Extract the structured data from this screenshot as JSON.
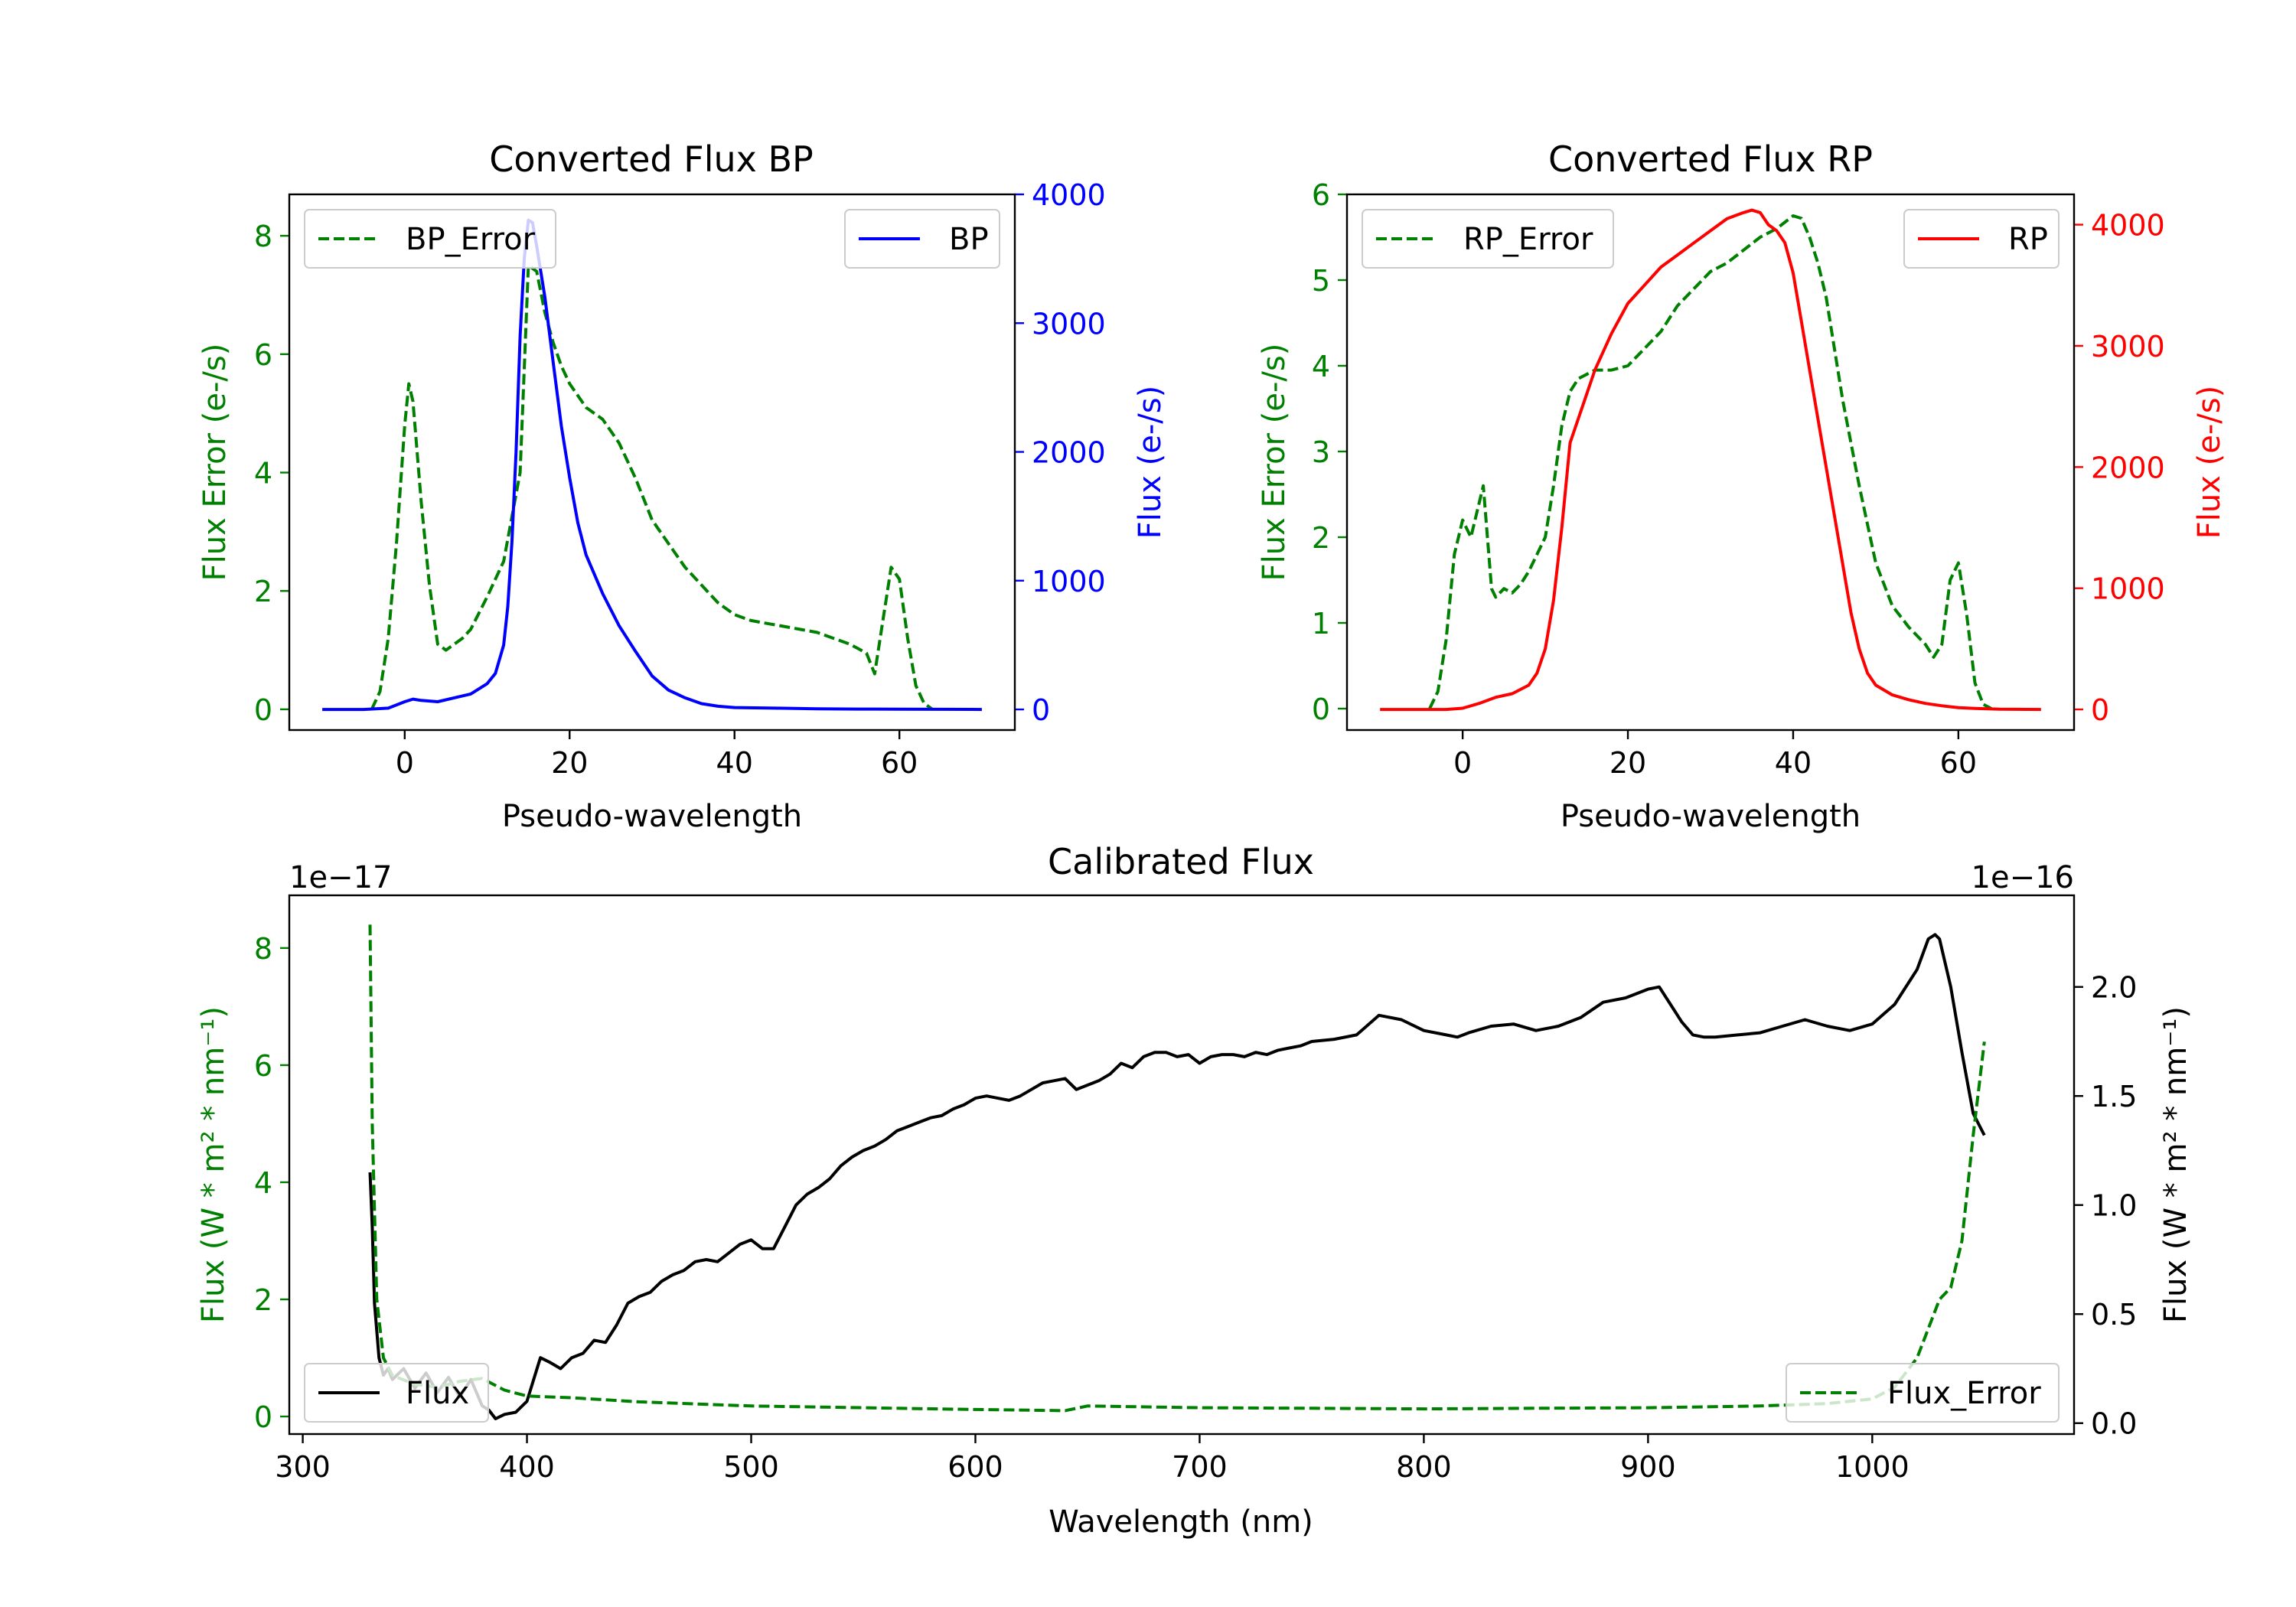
{
  "colors": {
    "bp": "#0000ff",
    "rp": "#ff0000",
    "error": "#008000",
    "flux": "#000000",
    "axis": "#000000"
  },
  "chart_data": [
    {
      "id": "bp",
      "type": "line",
      "title": "Converted Flux BP",
      "xlabel": "Pseudo-wavelength",
      "ylabel_left": "Flux Error (e-/s)",
      "ylabel_right": "Flux (e-/s)",
      "xlim": [
        -14.0,
        74.0
      ],
      "ylim_left": [
        -0.35,
        8.7
      ],
      "ylim_right": [
        -160,
        4000
      ],
      "xticks": [
        0,
        20,
        40,
        60
      ],
      "xtick_labels": [
        "0",
        "20",
        "40",
        "60"
      ],
      "yticks_left": [
        0,
        2,
        4,
        6,
        8
      ],
      "ytick_labels_left": [
        "0",
        "2",
        "4",
        "6",
        "8"
      ],
      "yticks_right": [
        0,
        1000,
        2000,
        3000,
        4000
      ],
      "ytick_labels_right": [
        "0",
        "1000",
        "2000",
        "3000",
        "4000"
      ],
      "legend_left": {
        "label": "BP_Error",
        "placement": "upper left"
      },
      "legend_right": {
        "label": "BP",
        "placement": "upper right"
      },
      "series": [
        {
          "name": "BP_Error",
          "axis": "left",
          "style": "dashed",
          "color_key": "error",
          "x": [
            -4,
            -3,
            -2,
            -1,
            0,
            0.5,
            1,
            2,
            3,
            4,
            5,
            6,
            7,
            8,
            10,
            12,
            14,
            15,
            16,
            17,
            18,
            19,
            20,
            22,
            24,
            26,
            28,
            30,
            32,
            34,
            36,
            38,
            40,
            42,
            44,
            46,
            48,
            50,
            52,
            54,
            56,
            57,
            58,
            59,
            60,
            61,
            62,
            63,
            64
          ],
          "y": [
            0,
            0.3,
            1.2,
            2.8,
            4.8,
            5.5,
            5.2,
            3.5,
            2.1,
            1.1,
            1.0,
            1.1,
            1.2,
            1.35,
            1.9,
            2.5,
            4.0,
            7.5,
            7.4,
            6.7,
            6.2,
            5.8,
            5.5,
            5.1,
            4.9,
            4.5,
            3.9,
            3.2,
            2.8,
            2.4,
            2.1,
            1.8,
            1.6,
            1.5,
            1.45,
            1.4,
            1.35,
            1.3,
            1.2,
            1.1,
            0.95,
            0.6,
            1.5,
            2.4,
            2.2,
            1.2,
            0.4,
            0.1,
            0
          ]
        },
        {
          "name": "BP",
          "axis": "right",
          "style": "solid",
          "color_key": "bp",
          "x": [
            -10,
            -5,
            -2,
            0,
            1,
            2,
            4,
            6,
            8,
            10,
            11,
            12,
            12.5,
            13,
            13.5,
            14,
            14.5,
            15,
            15.5,
            16,
            17,
            18,
            19,
            20,
            21,
            22,
            24,
            26,
            28,
            30,
            32,
            34,
            36,
            38,
            40,
            45,
            50,
            55,
            60,
            65,
            70
          ],
          "y": [
            0,
            0,
            10,
            60,
            80,
            70,
            60,
            90,
            120,
            200,
            280,
            500,
            800,
            1300,
            2000,
            2900,
            3500,
            3800,
            3780,
            3600,
            3200,
            2700,
            2200,
            1800,
            1450,
            1200,
            900,
            650,
            450,
            260,
            150,
            90,
            45,
            25,
            15,
            10,
            5,
            3,
            2,
            1,
            0
          ]
        }
      ]
    },
    {
      "id": "rp",
      "type": "line",
      "title": "Converted Flux RP",
      "xlabel": "Pseudo-wavelength",
      "ylabel_left": "Flux Error (e-/s)",
      "ylabel_right": "Flux (e-/s)",
      "xlim": [
        -14.0,
        74.0
      ],
      "ylim_left": [
        -0.25,
        6.0
      ],
      "ylim_right": [
        -170,
        4250
      ],
      "xticks": [
        0,
        20,
        40,
        60
      ],
      "xtick_labels": [
        "0",
        "20",
        "40",
        "60"
      ],
      "yticks_left": [
        0,
        1,
        2,
        3,
        4,
        5,
        6
      ],
      "ytick_labels_left": [
        "0",
        "1",
        "2",
        "3",
        "4",
        "5",
        "6"
      ],
      "yticks_right": [
        0,
        1000,
        2000,
        3000,
        4000
      ],
      "ytick_labels_right": [
        "0",
        "1000",
        "2000",
        "3000",
        "4000"
      ],
      "legend_left": {
        "label": "RP_Error",
        "placement": "upper left"
      },
      "legend_right": {
        "label": "RP",
        "placement": "upper right"
      },
      "series": [
        {
          "name": "RP_Error",
          "axis": "left",
          "style": "dashed",
          "color_key": "error",
          "x": [
            -4,
            -3,
            -2,
            -1,
            0,
            1,
            2,
            2.5,
            3,
            3.5,
            4,
            5,
            6,
            7,
            8,
            9,
            10,
            11,
            12,
            13,
            14,
            15,
            16,
            18,
            20,
            22,
            24,
            26,
            28,
            30,
            32,
            34,
            36,
            38,
            40,
            41,
            42,
            43,
            44,
            45,
            46,
            48,
            50,
            52,
            54,
            56,
            57,
            58,
            59,
            60,
            61,
            62,
            63,
            64
          ],
          "y": [
            0,
            0.2,
            0.8,
            1.8,
            2.2,
            2.0,
            2.4,
            2.6,
            2.0,
            1.4,
            1.3,
            1.4,
            1.35,
            1.45,
            1.6,
            1.8,
            2.0,
            2.6,
            3.3,
            3.7,
            3.85,
            3.9,
            3.95,
            3.95,
            4.0,
            4.2,
            4.4,
            4.7,
            4.9,
            5.1,
            5.2,
            5.35,
            5.5,
            5.6,
            5.75,
            5.72,
            5.5,
            5.2,
            4.8,
            4.2,
            3.6,
            2.6,
            1.7,
            1.2,
            0.95,
            0.75,
            0.6,
            0.75,
            1.5,
            1.7,
            1.1,
            0.3,
            0.05,
            0
          ]
        },
        {
          "name": "RP",
          "axis": "right",
          "style": "solid",
          "color_key": "rp",
          "x": [
            -10,
            -5,
            -2,
            0,
            2,
            4,
            6,
            8,
            9,
            10,
            11,
            12,
            13,
            14,
            15,
            16,
            18,
            20,
            22,
            24,
            26,
            28,
            30,
            32,
            34,
            35,
            36,
            37,
            38,
            39,
            40,
            41,
            42,
            43,
            44,
            45,
            46,
            47,
            48,
            49,
            50,
            52,
            54,
            56,
            58,
            60,
            62,
            65,
            70
          ],
          "y": [
            0,
            0,
            0,
            10,
            50,
            100,
            130,
            200,
            300,
            500,
            900,
            1500,
            2200,
            2400,
            2600,
            2800,
            3100,
            3350,
            3500,
            3650,
            3750,
            3850,
            3950,
            4050,
            4100,
            4120,
            4100,
            4000,
            3950,
            3850,
            3600,
            3200,
            2800,
            2400,
            2000,
            1600,
            1200,
            800,
            500,
            300,
            200,
            120,
            80,
            50,
            30,
            15,
            8,
            2,
            0
          ]
        }
      ]
    },
    {
      "id": "calibrated",
      "type": "line",
      "title": "Calibrated Flux",
      "xlabel": "Wavelength (nm)",
      "ylabel_left": "Flux (W * m² * nm⁻¹)",
      "ylabel_right": "Flux (W * m² * nm⁻¹)",
      "offset_left": "1e−17",
      "offset_right": "1e−16",
      "xlim": [
        294,
        1090
      ],
      "ylim_left": [
        -0.3,
        8.9
      ],
      "ylim_right": [
        -0.05,
        2.42
      ],
      "xticks": [
        300,
        400,
        500,
        600,
        700,
        800,
        900,
        1000
      ],
      "xtick_labels": [
        "300",
        "400",
        "500",
        "600",
        "700",
        "800",
        "900",
        "1000"
      ],
      "yticks_left": [
        0,
        2,
        4,
        6,
        8
      ],
      "ytick_labels_left": [
        "0",
        "2",
        "4",
        "6",
        "8"
      ],
      "yticks_right": [
        0.0,
        0.5,
        1.0,
        1.5,
        2.0
      ],
      "ytick_labels_right": [
        "0.0",
        "0.5",
        "1.0",
        "1.5",
        "2.0"
      ],
      "legend_left": {
        "label": "Flux",
        "placement": "lower left"
      },
      "legend_right": {
        "label": "Flux_Error",
        "placement": "lower right"
      },
      "series": [
        {
          "name": "Flux",
          "axis": "right",
          "style": "solid",
          "color_key": "flux",
          "x": [
            330,
            331,
            332,
            334,
            336,
            338,
            340,
            345,
            350,
            355,
            360,
            365,
            370,
            375,
            380,
            383,
            386,
            390,
            395,
            400,
            403,
            406,
            410,
            415,
            420,
            425,
            430,
            435,
            440,
            445,
            450,
            455,
            460,
            465,
            470,
            475,
            480,
            485,
            490,
            495,
            500,
            505,
            510,
            515,
            520,
            525,
            530,
            535,
            540,
            545,
            550,
            555,
            560,
            565,
            570,
            575,
            580,
            585,
            590,
            595,
            600,
            605,
            610,
            615,
            620,
            625,
            630,
            635,
            640,
            645,
            650,
            655,
            660,
            665,
            670,
            675,
            680,
            685,
            690,
            695,
            700,
            705,
            710,
            715,
            720,
            725,
            730,
            735,
            740,
            745,
            750,
            760,
            770,
            780,
            790,
            800,
            810,
            815,
            820,
            830,
            840,
            850,
            860,
            870,
            880,
            890,
            900,
            905,
            910,
            915,
            920,
            925,
            930,
            940,
            950,
            960,
            970,
            980,
            990,
            1000,
            1010,
            1020,
            1025,
            1028,
            1030,
            1035,
            1040,
            1045,
            1050
          ],
          "y": [
            1.15,
            0.9,
            0.55,
            0.3,
            0.22,
            0.25,
            0.2,
            0.25,
            0.16,
            0.23,
            0.14,
            0.21,
            0.12,
            0.2,
            0.08,
            0.06,
            0.02,
            0.04,
            0.05,
            0.1,
            0.2,
            0.3,
            0.28,
            0.25,
            0.3,
            0.32,
            0.38,
            0.37,
            0.45,
            0.55,
            0.58,
            0.6,
            0.65,
            0.68,
            0.7,
            0.74,
            0.75,
            0.74,
            0.78,
            0.82,
            0.84,
            0.8,
            0.8,
            0.9,
            1.0,
            1.05,
            1.08,
            1.12,
            1.18,
            1.22,
            1.25,
            1.27,
            1.3,
            1.34,
            1.36,
            1.38,
            1.4,
            1.41,
            1.44,
            1.46,
            1.49,
            1.5,
            1.49,
            1.48,
            1.5,
            1.53,
            1.56,
            1.57,
            1.58,
            1.53,
            1.55,
            1.57,
            1.6,
            1.65,
            1.63,
            1.68,
            1.7,
            1.7,
            1.68,
            1.69,
            1.65,
            1.68,
            1.69,
            1.69,
            1.68,
            1.7,
            1.69,
            1.71,
            1.72,
            1.73,
            1.75,
            1.76,
            1.78,
            1.87,
            1.85,
            1.8,
            1.78,
            1.77,
            1.79,
            1.82,
            1.83,
            1.8,
            1.82,
            1.86,
            1.93,
            1.95,
            1.99,
            2.0,
            1.92,
            1.84,
            1.78,
            1.77,
            1.77,
            1.78,
            1.79,
            1.82,
            1.85,
            1.82,
            1.8,
            1.83,
            1.92,
            2.08,
            2.22,
            2.24,
            2.22,
            2.0,
            1.7,
            1.42,
            1.32
          ]
        },
        {
          "name": "Flux_Error",
          "axis": "left",
          "style": "dashed",
          "color_key": "error",
          "x": [
            330,
            331,
            333,
            336,
            340,
            350,
            360,
            370,
            380,
            390,
            400,
            420,
            450,
            500,
            550,
            600,
            640,
            650,
            700,
            750,
            800,
            850,
            900,
            950,
            980,
            1000,
            1010,
            1020,
            1030,
            1035,
            1040,
            1045,
            1050
          ],
          "y": [
            8.4,
            5.0,
            2.0,
            1.0,
            0.7,
            0.55,
            0.5,
            0.6,
            0.65,
            0.45,
            0.35,
            0.32,
            0.25,
            0.18,
            0.15,
            0.12,
            0.1,
            0.18,
            0.15,
            0.14,
            0.13,
            0.14,
            0.15,
            0.18,
            0.22,
            0.3,
            0.5,
            1.0,
            2.0,
            2.2,
            3.0,
            4.8,
            6.4
          ]
        }
      ]
    }
  ]
}
